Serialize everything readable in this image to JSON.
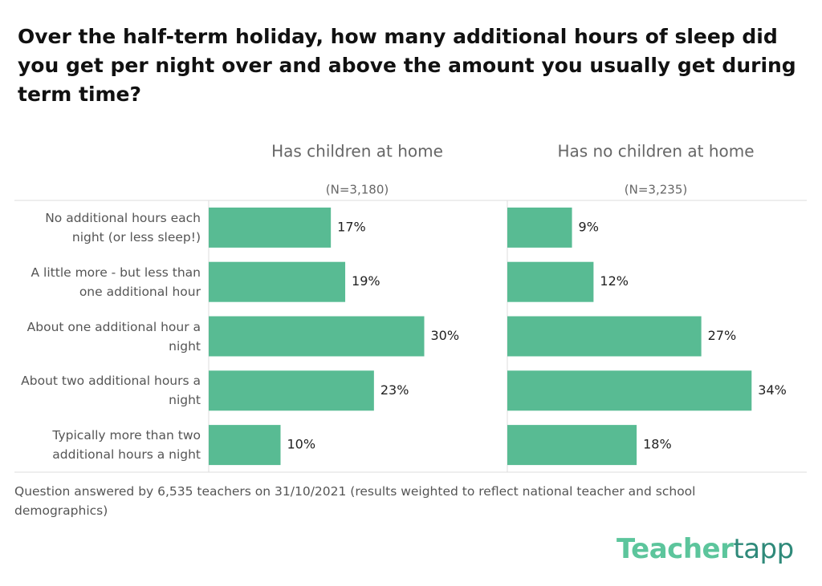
{
  "chart_data": {
    "type": "bar",
    "orientation": "horizontal",
    "title": "Over the half-term holiday, how many additional hours of sleep did you get per night over and above the amount you usually get during term time?",
    "categories": [
      "No additional hours each night (or less sleep!)",
      "A little more - but less than one additional hour",
      "About one additional hour a night",
      "About two additional hours a night",
      "Typically more than two additional hours a night"
    ],
    "series": [
      {
        "name": "Has children at home",
        "n_label": "(N=3,180)",
        "color": "#58bb93",
        "values": [
          17,
          19,
          30,
          23,
          10
        ],
        "value_labels": [
          "17%",
          "19%",
          "30%",
          "23%",
          "10%"
        ]
      },
      {
        "name": "Has no children at home",
        "n_label": "(N=3,235)",
        "color": "#58bb93",
        "values": [
          9,
          12,
          27,
          34,
          18
        ],
        "value_labels": [
          "9%",
          "12%",
          "27%",
          "34%",
          "18%"
        ]
      }
    ],
    "xlim": [
      0,
      40
    ],
    "footnote": "Question answered by 6,535 teachers on 31/10/2021 (results weighted to reflect national teacher and school demographics)",
    "logo": [
      "Teacher",
      "tapp"
    ]
  }
}
